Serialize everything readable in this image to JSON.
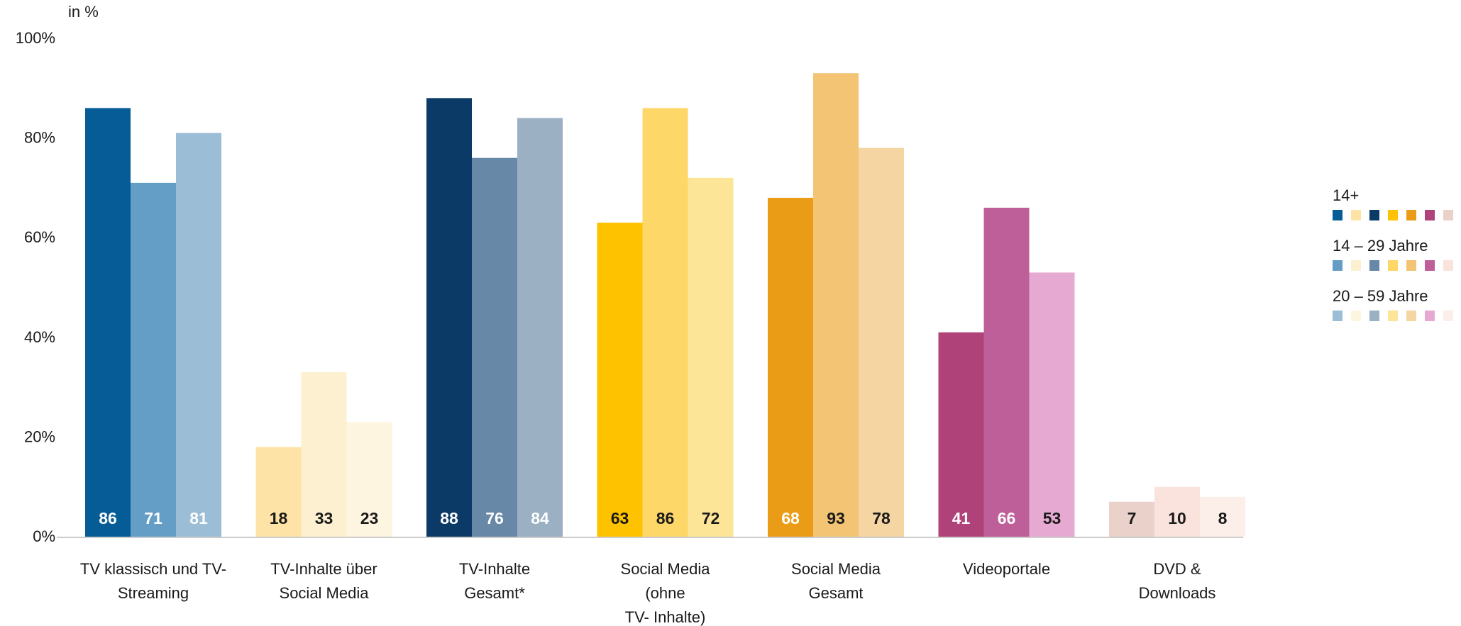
{
  "unit_label": "in %",
  "colors": {
    "axis": "#cccccc",
    "dark_label": "#1a1a1a",
    "light_label": "#ffffff",
    "bars": [
      [
        "#065c97",
        "#649ec6",
        "#9bbdd5"
      ],
      [
        "#fde3a6",
        "#fdf0d0",
        "#fef5e0"
      ],
      [
        "#0b3a66",
        "#6888a7",
        "#9bb0c3"
      ],
      [
        "#fec200",
        "#fed769",
        "#fde597"
      ],
      [
        "#eb9c17",
        "#f2c474",
        "#f5d5a1"
      ],
      [
        "#b0427a",
        "#bf5f9a",
        "#e6aad2"
      ],
      [
        "#ead1c9",
        "#fae3dd",
        "#fcefea"
      ]
    ]
  },
  "chart_data": {
    "type": "bar",
    "categories": [
      [
        "TV klassisch und TV-",
        "Streaming"
      ],
      [
        "TV-Inhalte über",
        "Social Media"
      ],
      [
        "TV-Inhalte",
        "Gesamt*"
      ],
      [
        "Social Media",
        "(ohne",
        "TV- Inhalte)"
      ],
      [
        "Social Media",
        "Gesamt"
      ],
      [
        "Videoportale"
      ],
      [
        "DVD &",
        "Downloads"
      ]
    ],
    "series": [
      {
        "name": "14+",
        "values": [
          86,
          18,
          88,
          63,
          68,
          41,
          7
        ]
      },
      {
        "name": "14 – 29 Jahre",
        "values": [
          71,
          33,
          76,
          86,
          93,
          66,
          10
        ]
      },
      {
        "name": "20 – 59 Jahre",
        "values": [
          81,
          23,
          84,
          72,
          78,
          53,
          8
        ]
      }
    ],
    "data_labels": [
      [
        "86",
        "71",
        "81"
      ],
      [
        "18",
        "33",
        "23"
      ],
      [
        "88",
        "76",
        "84"
      ],
      [
        "63",
        "86",
        "72"
      ],
      [
        "68",
        "93",
        "78"
      ],
      [
        "41",
        "66",
        "53"
      ],
      [
        "7",
        "10",
        "8"
      ]
    ],
    "yticks": [
      "0%",
      "20%",
      "40%",
      "60%",
      "80%",
      "100%"
    ],
    "ylim": [
      0,
      100
    ],
    "grid": false,
    "legend_position": "right"
  }
}
